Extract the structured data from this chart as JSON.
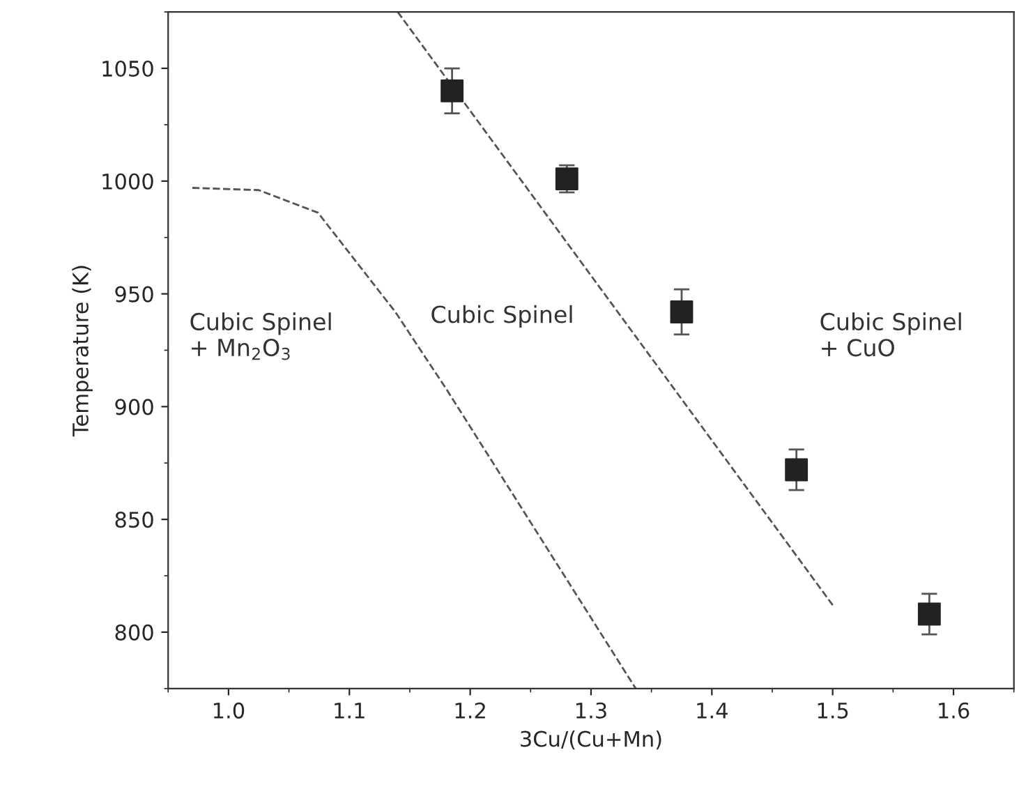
{
  "chart_data": {
    "type": "scatter",
    "xlabel": "3Cu/(Cu+Mn)",
    "ylabel": "Temperature (K)",
    "xlim": [
      0.95,
      1.65
    ],
    "xticks": [
      {
        "value": 1.0,
        "label": "1.0"
      },
      1.1,
      1.2,
      1.3,
      1.4,
      1.5,
      1.6
    ],
    "ylim": [
      775,
      1075
    ],
    "yticks": [
      800,
      850,
      900,
      950,
      1000,
      1050
    ],
    "marker": "square",
    "grid": false,
    "legend": false,
    "series": [
      {
        "color": "#222222",
        "x": [
          1.185,
          1.28,
          1.375,
          1.47,
          1.58
        ],
        "values": [
          1040,
          1001,
          942,
          872,
          808
        ],
        "errors": [
          10,
          6,
          10,
          9,
          9
        ]
      },
      {
        "type": "line",
        "color": "#555555",
        "line_style": "dashed",
        "marker": "none",
        "x": [
          0.97,
          1.025,
          1.074,
          1.138,
          1.18,
          1.337
        ],
        "values": [
          997,
          996,
          986,
          942,
          908,
          775
        ]
      },
      {
        "type": "line",
        "color": "#555555",
        "line_style": "dashed",
        "marker": "none",
        "x": [
          1.14,
          1.5
        ],
        "values": [
          1075,
          812
        ]
      }
    ],
    "annotations": [
      "Cubic Spinel\n+ Mn$_{2}$O$_{3}$",
      "Cubic Spinel",
      "Cubic Spinel\n+ CuO"
    ]
  }
}
